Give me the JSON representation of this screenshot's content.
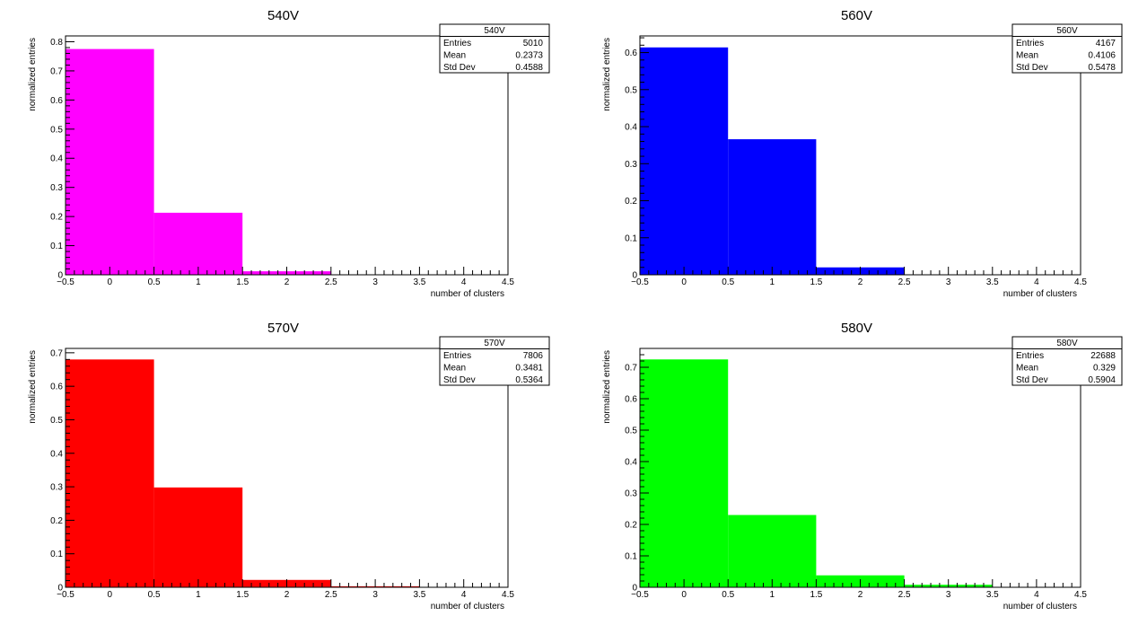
{
  "chart_data": [
    {
      "type": "bar",
      "title": "540V",
      "xlabel": "number of clusters",
      "ylabel": "normalized entries",
      "xlim": [
        -0.5,
        4.5
      ],
      "ylim": [
        0,
        0.82
      ],
      "xticks": [
        "−0.5",
        "0",
        "0.5",
        "1",
        "1.5",
        "2",
        "2.5",
        "3",
        "3.5",
        "4",
        "4.5"
      ],
      "yticks": [
        "0",
        "0.1",
        "0.2",
        "0.3",
        "0.4",
        "0.5",
        "0.6",
        "0.7",
        "0.8"
      ],
      "bins": [
        [
          -0.5,
          0.5
        ],
        [
          0.5,
          1.5
        ],
        [
          1.5,
          2.5
        ]
      ],
      "values": [
        0.775,
        0.213,
        0.012
      ],
      "color": "#ff00ff",
      "stats": {
        "name": "540V",
        "rows": [
          {
            "label": "Entries",
            "value": "5010"
          },
          {
            "label": "Mean",
            "value": "0.2373"
          },
          {
            "label": "Std Dev",
            "value": "0.4588"
          }
        ]
      }
    },
    {
      "type": "bar",
      "title": "560V",
      "xlabel": "number of clusters",
      "ylabel": "normalized entries",
      "xlim": [
        -0.5,
        4.5
      ],
      "ylim": [
        0,
        0.645
      ],
      "xticks": [
        "−0.5",
        "0",
        "0.5",
        "1",
        "1.5",
        "2",
        "2.5",
        "3",
        "3.5",
        "4",
        "4.5"
      ],
      "yticks": [
        "0",
        "0.1",
        "0.2",
        "0.3",
        "0.4",
        "0.5",
        "0.6"
      ],
      "bins": [
        [
          -0.5,
          0.5
        ],
        [
          0.5,
          1.5
        ],
        [
          1.5,
          2.5
        ]
      ],
      "values": [
        0.614,
        0.366,
        0.02
      ],
      "color": "#0000ff",
      "stats": {
        "name": "560V",
        "rows": [
          {
            "label": "Entries",
            "value": "4167"
          },
          {
            "label": "Mean",
            "value": "0.4106"
          },
          {
            "label": "Std Dev",
            "value": "0.5478"
          }
        ]
      }
    },
    {
      "type": "bar",
      "title": "570V",
      "xlabel": "number of clusters",
      "ylabel": "normalized entries",
      "xlim": [
        -0.5,
        4.5
      ],
      "ylim": [
        0,
        0.713
      ],
      "xticks": [
        "−0.5",
        "0",
        "0.5",
        "1",
        "1.5",
        "2",
        "2.5",
        "3",
        "3.5",
        "4",
        "4.5"
      ],
      "yticks": [
        "0",
        "0.1",
        "0.2",
        "0.3",
        "0.4",
        "0.5",
        "0.6",
        "0.7"
      ],
      "bins": [
        [
          -0.5,
          0.5
        ],
        [
          0.5,
          1.5
        ],
        [
          1.5,
          2.5
        ],
        [
          2.5,
          3.5
        ]
      ],
      "values": [
        0.68,
        0.298,
        0.022,
        0.003
      ],
      "color": "#ff0000",
      "stats": {
        "name": "570V",
        "rows": [
          {
            "label": "Entries",
            "value": "7806"
          },
          {
            "label": "Mean",
            "value": "0.3481"
          },
          {
            "label": "Std Dev",
            "value": "0.5364"
          }
        ]
      }
    },
    {
      "type": "bar",
      "title": "580V",
      "xlabel": "number of clusters",
      "ylabel": "normalized entries",
      "xlim": [
        -0.5,
        4.5
      ],
      "ylim": [
        0,
        0.76
      ],
      "xticks": [
        "−0.5",
        "0",
        "0.5",
        "1",
        "1.5",
        "2",
        "2.5",
        "3",
        "3.5",
        "4",
        "4.5"
      ],
      "yticks": [
        "0",
        "0.1",
        "0.2",
        "0.3",
        "0.4",
        "0.5",
        "0.6",
        "0.7"
      ],
      "bins": [
        [
          -0.5,
          0.5
        ],
        [
          0.5,
          1.5
        ],
        [
          1.5,
          2.5
        ],
        [
          2.5,
          3.5
        ]
      ],
      "values": [
        0.725,
        0.23,
        0.038,
        0.008
      ],
      "color": "#00ff00",
      "stats": {
        "name": "580V",
        "rows": [
          {
            "label": "Entries",
            "value": "22688"
          },
          {
            "label": "Mean",
            "value": "0.329"
          },
          {
            "label": "Std Dev",
            "value": "0.5904"
          }
        ]
      }
    }
  ]
}
